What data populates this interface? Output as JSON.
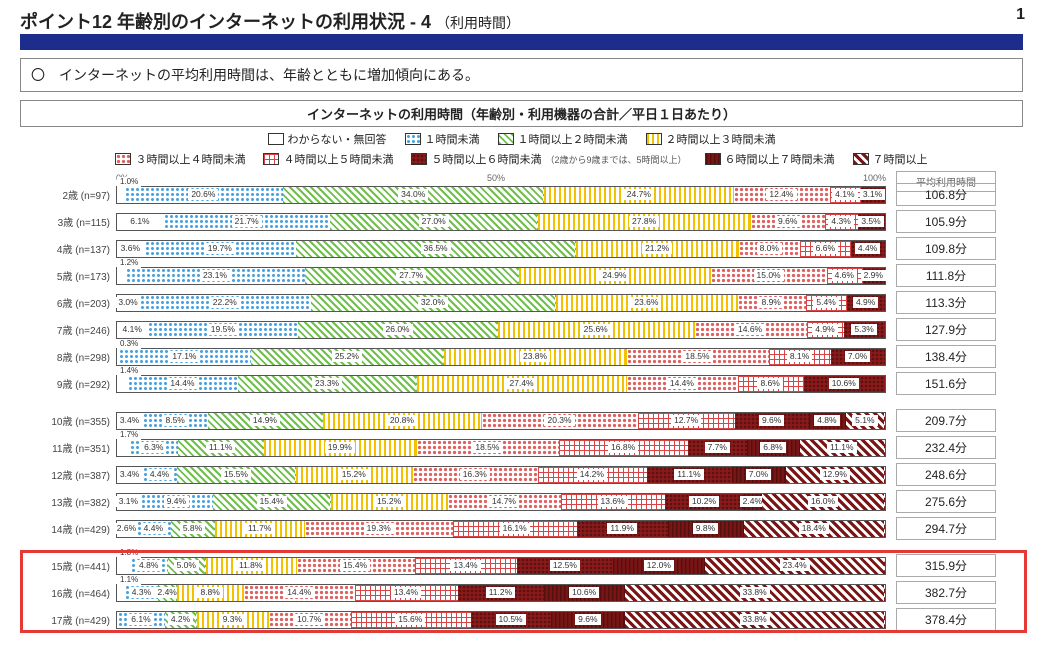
{
  "page_title_main": "ポイント12 年齢別のインターネットの利用状況 - 4",
  "page_title_sub": "（利用時間）",
  "page_corner": "1",
  "summary": "〇　インターネットの平均利用時間は、年齢とともに増加傾向にある。",
  "chart_title": "インターネットの利用時間（年齢別・利用機器の合計／平日１日あたり）",
  "legend_note": "（2歳から9歳までは、5時間以上）",
  "axis": {
    "t0": "0%",
    "t50": "50%",
    "t100": "100%"
  },
  "avg_header": "平均利用時間",
  "legend": [
    {
      "key": "c0",
      "label": "わからない・無回答",
      "class": "p-white"
    },
    {
      "key": "c1",
      "label": "１時間未満",
      "class": "p-dots-blue"
    },
    {
      "key": "c2",
      "label": "１時間以上２時間未満",
      "class": "p-diag-green"
    },
    {
      "key": "c3",
      "label": "２時間以上３時間未満",
      "class": "p-vlines-yellow"
    },
    {
      "key": "c4",
      "label": "３時間以上４時間未満",
      "class": "p-dots-red"
    },
    {
      "key": "c5",
      "label": "４時間以上５時間未満",
      "class": "p-grid-red"
    },
    {
      "key": "c6",
      "label": "５時間以上６時間未満",
      "class": "p-solid-darkred"
    },
    {
      "key": "c7",
      "label": "６時間以上７時間未満",
      "class": "p-lines-darkred"
    },
    {
      "key": "c8",
      "label": "７時間以上",
      "class": "p-hatch-darkred"
    }
  ],
  "groups": [
    {
      "rows": [
        {
          "cat": "2歳 (n=97)",
          "avg": "106.8分",
          "segs": [
            [
              "c0",
              1.0
            ],
            [
              "c1",
              20.6
            ],
            [
              "c2",
              34.0
            ],
            [
              "c3",
              24.7
            ],
            [
              "c4",
              12.4
            ],
            [
              "c5",
              4.1
            ],
            [
              "c6",
              3.1
            ]
          ]
        },
        {
          "cat": "3歳 (n=115)",
          "avg": "105.9分",
          "segs": [
            [
              "c0",
              6.1
            ],
            [
              "c1",
              21.7
            ],
            [
              "c2",
              27.0
            ],
            [
              "c3",
              27.8
            ],
            [
              "c4",
              9.6
            ],
            [
              "c5",
              4.3
            ],
            [
              "c6",
              3.5
            ]
          ]
        },
        {
          "cat": "4歳 (n=137)",
          "avg": "109.8分",
          "segs": [
            [
              "c0",
              3.6
            ],
            [
              "c1",
              19.7
            ],
            [
              "c2",
              36.5
            ],
            [
              "c3",
              21.2
            ],
            [
              "c4",
              8.0
            ],
            [
              "c5",
              6.6
            ],
            [
              "c6",
              4.4
            ]
          ]
        },
        {
          "cat": "5歳 (n=173)",
          "avg": "111.8分",
          "segs": [
            [
              "c0",
              1.2
            ],
            [
              "c1",
              23.1
            ],
            [
              "c2",
              27.7
            ],
            [
              "c3",
              24.9
            ],
            [
              "c4",
              15.0
            ],
            [
              "c5",
              4.6
            ],
            [
              "c6",
              2.9
            ]
          ]
        },
        {
          "cat": "6歳 (n=203)",
          "avg": "113.3分",
          "segs": [
            [
              "c0",
              3.0
            ],
            [
              "c1",
              22.2
            ],
            [
              "c2",
              32.0
            ],
            [
              "c3",
              23.6
            ],
            [
              "c4",
              8.9
            ],
            [
              "c5",
              5.4
            ],
            [
              "c6",
              4.9
            ]
          ]
        },
        {
          "cat": "7歳 (n=246)",
          "avg": "127.9分",
          "segs": [
            [
              "c0",
              4.1
            ],
            [
              "c1",
              19.5
            ],
            [
              "c2",
              26.0
            ],
            [
              "c3",
              25.6
            ],
            [
              "c4",
              14.6
            ],
            [
              "c5",
              4.9
            ],
            [
              "c6",
              5.3
            ]
          ]
        },
        {
          "cat": "8歳 (n=298)",
          "avg": "138.4分",
          "segs": [
            [
              "c0",
              0.3
            ],
            [
              "c1",
              17.1
            ],
            [
              "c2",
              25.2
            ],
            [
              "c3",
              23.8
            ],
            [
              "c4",
              18.5
            ],
            [
              "c5",
              8.1
            ],
            [
              "c6",
              7.0
            ]
          ]
        },
        {
          "cat": "9歳 (n=292)",
          "avg": "151.6分",
          "segs": [
            [
              "c0",
              1.4
            ],
            [
              "c1",
              14.4
            ],
            [
              "c2",
              23.3
            ],
            [
              "c3",
              27.4
            ],
            [
              "c4",
              14.4
            ],
            [
              "c5",
              8.6
            ],
            [
              "c6",
              10.6
            ]
          ]
        }
      ]
    },
    {
      "rows": [
        {
          "cat": "10歳 (n=355)",
          "avg": "209.7分",
          "segs": [
            [
              "c0",
              3.4
            ],
            [
              "c1",
              8.5
            ],
            [
              "c2",
              14.9
            ],
            [
              "c3",
              20.8
            ],
            [
              "c4",
              20.3
            ],
            [
              "c5",
              12.7
            ],
            [
              "c6",
              9.6
            ],
            [
              "c7",
              4.8
            ],
            [
              "c8",
              5.1
            ]
          ]
        },
        {
          "cat": "11歳 (n=351)",
          "avg": "232.4分",
          "segs": [
            [
              "c0",
              1.7
            ],
            [
              "c1",
              6.3
            ],
            [
              "c2",
              11.1
            ],
            [
              "c3",
              19.9
            ],
            [
              "c4",
              18.5
            ],
            [
              "c5",
              16.8
            ],
            [
              "c6",
              7.7
            ],
            [
              "c7",
              6.8
            ],
            [
              "c8",
              11.1
            ]
          ]
        },
        {
          "cat": "12歳 (n=387)",
          "avg": "248.6分",
          "segs": [
            [
              "c0",
              3.4
            ],
            [
              "c1",
              4.4
            ],
            [
              "c2",
              15.5
            ],
            [
              "c3",
              15.2
            ],
            [
              "c4",
              16.3
            ],
            [
              "c5",
              14.2
            ],
            [
              "c6",
              11.1
            ],
            [
              "c7",
              7.0
            ],
            [
              "c8",
              12.9
            ]
          ]
        },
        {
          "cat": "13歳 (n=382)",
          "avg": "275.6分",
          "segs": [
            [
              "c0",
              3.1
            ],
            [
              "c1",
              9.4
            ],
            [
              "c2",
              15.4
            ],
            [
              "c3",
              15.2
            ],
            [
              "c4",
              14.7
            ],
            [
              "c5",
              13.6
            ],
            [
              "c6",
              10.2
            ],
            [
              "c7",
              2.4
            ],
            [
              "c8",
              16.0
            ]
          ]
        },
        {
          "cat": "14歳 (n=429)",
          "avg": "294.7分",
          "segs": [
            [
              "c0",
              2.6
            ],
            [
              "c1",
              4.4
            ],
            [
              "c2",
              5.8
            ],
            [
              "c3",
              11.7
            ],
            [
              "c4",
              19.3
            ],
            [
              "c5",
              16.1
            ],
            [
              "c6",
              11.9
            ],
            [
              "c7",
              9.8
            ],
            [
              "c8",
              18.4
            ]
          ]
        }
      ]
    },
    {
      "highlight": true,
      "rows": [
        {
          "cat": "15歳 (n=441)",
          "avg": "315.9分",
          "segs": [
            [
              "c0",
              1.8
            ],
            [
              "c1",
              4.8
            ],
            [
              "c2",
              5.0
            ],
            [
              "c3",
              11.8
            ],
            [
              "c4",
              15.4
            ],
            [
              "c5",
              13.4
            ],
            [
              "c6",
              12.5
            ],
            [
              "c7",
              12.0
            ],
            [
              "c8",
              23.4
            ]
          ]
        },
        {
          "cat": "16歳 (n=464)",
          "avg": "382.7分",
          "segs": [
            [
              "c0",
              1.1
            ],
            [
              "c1",
              4.3
            ],
            [
              "c2",
              2.4
            ],
            [
              "c3",
              8.8
            ],
            [
              "c4",
              14.4
            ],
            [
              "c5",
              13.4
            ],
            [
              "c6",
              11.2
            ],
            [
              "c7",
              10.6
            ],
            [
              "c8",
              33.8
            ]
          ]
        },
        {
          "cat": "17歳 (n=429)",
          "avg": "378.4分",
          "segs": [
            [
              "c0",
              0.0
            ],
            [
              "c1",
              6.1
            ],
            [
              "c2",
              4.2
            ],
            [
              "c3",
              9.3
            ],
            [
              "c4",
              10.7
            ],
            [
              "c5",
              15.6
            ],
            [
              "c6",
              10.5
            ],
            [
              "c7",
              9.6
            ],
            [
              "c8",
              33.8
            ]
          ]
        }
      ]
    }
  ]
}
